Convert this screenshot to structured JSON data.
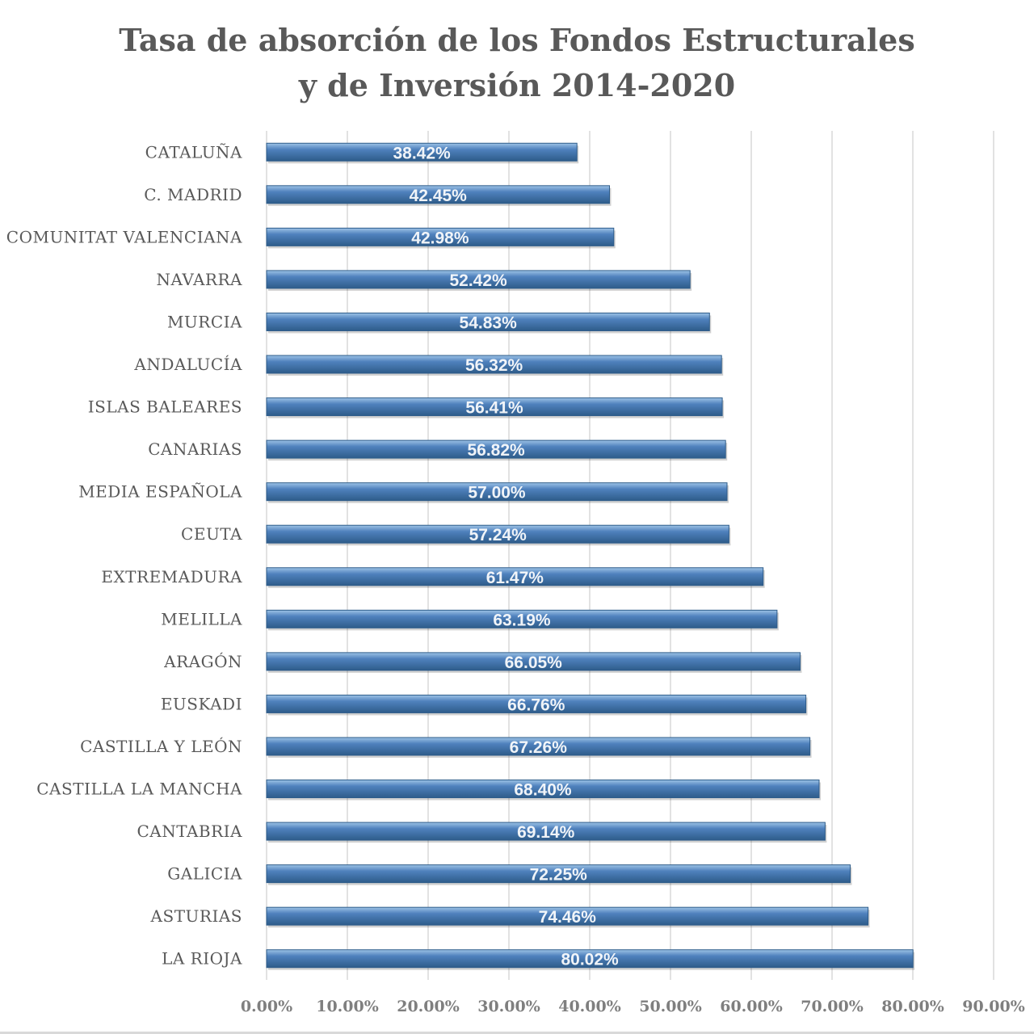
{
  "chart_data": {
    "type": "bar",
    "orientation": "horizontal",
    "title": "Tasa de absorción de los Fondos Estructurales\ny de Inversión 2014-2020",
    "categories": [
      "CATALUÑA",
      "C. MADRID",
      "COMUNITAT VALENCIANA",
      "NAVARRA",
      "MURCIA",
      "ANDALUCÍA",
      "ISLAS BALEARES",
      "CANARIAS",
      "MEDIA ESPAÑOLA",
      "CEUTA",
      "EXTREMADURA",
      "MELILLA",
      "ARAGÓN",
      "EUSKADI",
      "CASTILLA Y LEÓN",
      "CASTILLA LA MANCHA",
      "CANTABRIA",
      "GALICIA",
      "ASTURIAS",
      "LA RIOJA"
    ],
    "values": [
      38.42,
      42.45,
      42.98,
      52.42,
      54.83,
      56.32,
      56.41,
      56.82,
      57.0,
      57.24,
      61.47,
      63.19,
      66.05,
      66.76,
      67.26,
      68.4,
      69.14,
      72.25,
      74.46,
      80.02
    ],
    "data_labels": [
      "38.42%",
      "42.45%",
      "42.98%",
      "52.42%",
      "54.83%",
      "56.32%",
      "56.41%",
      "56.82%",
      "57.00%",
      "57.24%",
      "61.47%",
      "63.19%",
      "66.05%",
      "66.76%",
      "67.26%",
      "68.40%",
      "69.14%",
      "72.25%",
      "74.46%",
      "80.02%"
    ],
    "xlim": [
      0,
      90
    ],
    "x_ticks": [
      0,
      10,
      20,
      30,
      40,
      50,
      60,
      70,
      80,
      90
    ],
    "x_tick_labels": [
      "0.00%",
      "10.00%",
      "20.00%",
      "30.00%",
      "40.00%",
      "50.00%",
      "60.00%",
      "70.00%",
      "80.00%",
      "90.00%"
    ],
    "grid": true,
    "legend": "none",
    "colors": {
      "bar": "#4f81bd",
      "bar_light": "#9dc3e6",
      "bar_dark": "#2e5c8a",
      "grid": "#d9d9d9",
      "label_text": "#595959",
      "tick_text": "#7f7f7f"
    }
  }
}
